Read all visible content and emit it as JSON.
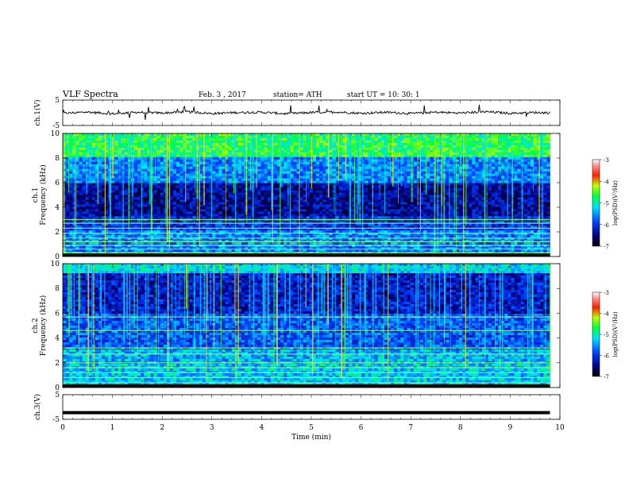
{
  "header": {
    "title": "VLF  Spectra",
    "date": "Feb. 3  , 2017",
    "station": "station= ATH",
    "start_ut": "start  UT  =    10: 30: 1"
  },
  "chart_data": [
    {
      "type": "line",
      "panel": "ch1-waveform",
      "ylabel": "ch.1(V)",
      "ylim": [
        -5,
        5
      ],
      "yticks": [
        "5",
        "-5"
      ],
      "xlim": [
        0,
        10
      ],
      "xlabel": "",
      "series": [
        {
          "description_values": "noisy waveform centered near 0 V with sparse spikes",
          "x": [
            0.0,
            0.5,
            1.0,
            1.5,
            2.0,
            2.5,
            3.0,
            3.5,
            4.0,
            4.5,
            5.0,
            5.5,
            6.0,
            6.5,
            7.0,
            7.5,
            8.0,
            8.5,
            9.0,
            9.5,
            9.8
          ],
          "values": [
            -0.2,
            0.3,
            -0.4,
            0.2,
            -0.1,
            0.4,
            -0.3,
            0.1,
            0.2,
            -0.4,
            0.1,
            0.3,
            -0.2,
            0.2,
            -0.3,
            0.2,
            -0.1,
            0.4,
            -0.2,
            0.1,
            0.0
          ]
        }
      ]
    },
    {
      "type": "heatmap",
      "panel": "ch1-spectrogram",
      "ylabel": "ch.1\nFrequency  (kHz)",
      "ylim": [
        0,
        10
      ],
      "yticks": [
        "10",
        "8",
        "6",
        "4",
        "2",
        "0"
      ],
      "xlim": [
        0,
        10
      ],
      "colorbar": {
        "label": "log(PSD)(V²/Hz)",
        "range": [
          -7,
          -3
        ],
        "ticks": [
          "-3",
          "-4",
          "-5",
          "-6",
          "-7"
        ]
      },
      "x_extent_min": 9.8,
      "bands_khz": {
        "bright_lines": [
          0.3,
          0.6,
          0.9,
          1.2,
          1.5,
          1.9,
          2.3,
          2.7,
          3.0
        ],
        "dark_region": [
          3.5,
          5.0
        ],
        "high_noise": [
          8.0,
          10.0
        ]
      }
    },
    {
      "type": "heatmap",
      "panel": "ch2-spectrogram",
      "ylabel": "ch.2\nFrequency  (kHz)",
      "ylim": [
        0,
        10
      ],
      "yticks": [
        "10",
        "8",
        "6",
        "4",
        "2",
        "0"
      ],
      "xlim": [
        0,
        10
      ],
      "colorbar": {
        "label": "log(PSD)(V²/Hz)",
        "range": [
          -7,
          -3
        ],
        "ticks": [
          "-3",
          "-4",
          "-5",
          "-6",
          "-7"
        ]
      },
      "x_extent_min": 9.8,
      "bands_khz": {
        "bright_lines": [
          0.4,
          0.8,
          1.2,
          1.6,
          2.0,
          2.7,
          3.2,
          4.6,
          5.7
        ],
        "dark_region": [
          5.5,
          9.5
        ],
        "high_noise": [
          9.5,
          10.0
        ]
      }
    },
    {
      "type": "line",
      "panel": "ch3-waveform",
      "ylabel": "ch.3(V)",
      "ylim": [
        -5,
        5
      ],
      "yticks": [
        "5",
        "-5"
      ],
      "xlim": [
        0,
        10
      ],
      "xlabel": "Time  (min)",
      "xticks": [
        "0",
        "1",
        "2",
        "3",
        "4",
        "5",
        "6",
        "7",
        "8",
        "9",
        "10"
      ],
      "series": [
        {
          "x": [
            0,
            9.8
          ],
          "values": [
            -2.3,
            -2.3
          ]
        }
      ]
    }
  ]
}
